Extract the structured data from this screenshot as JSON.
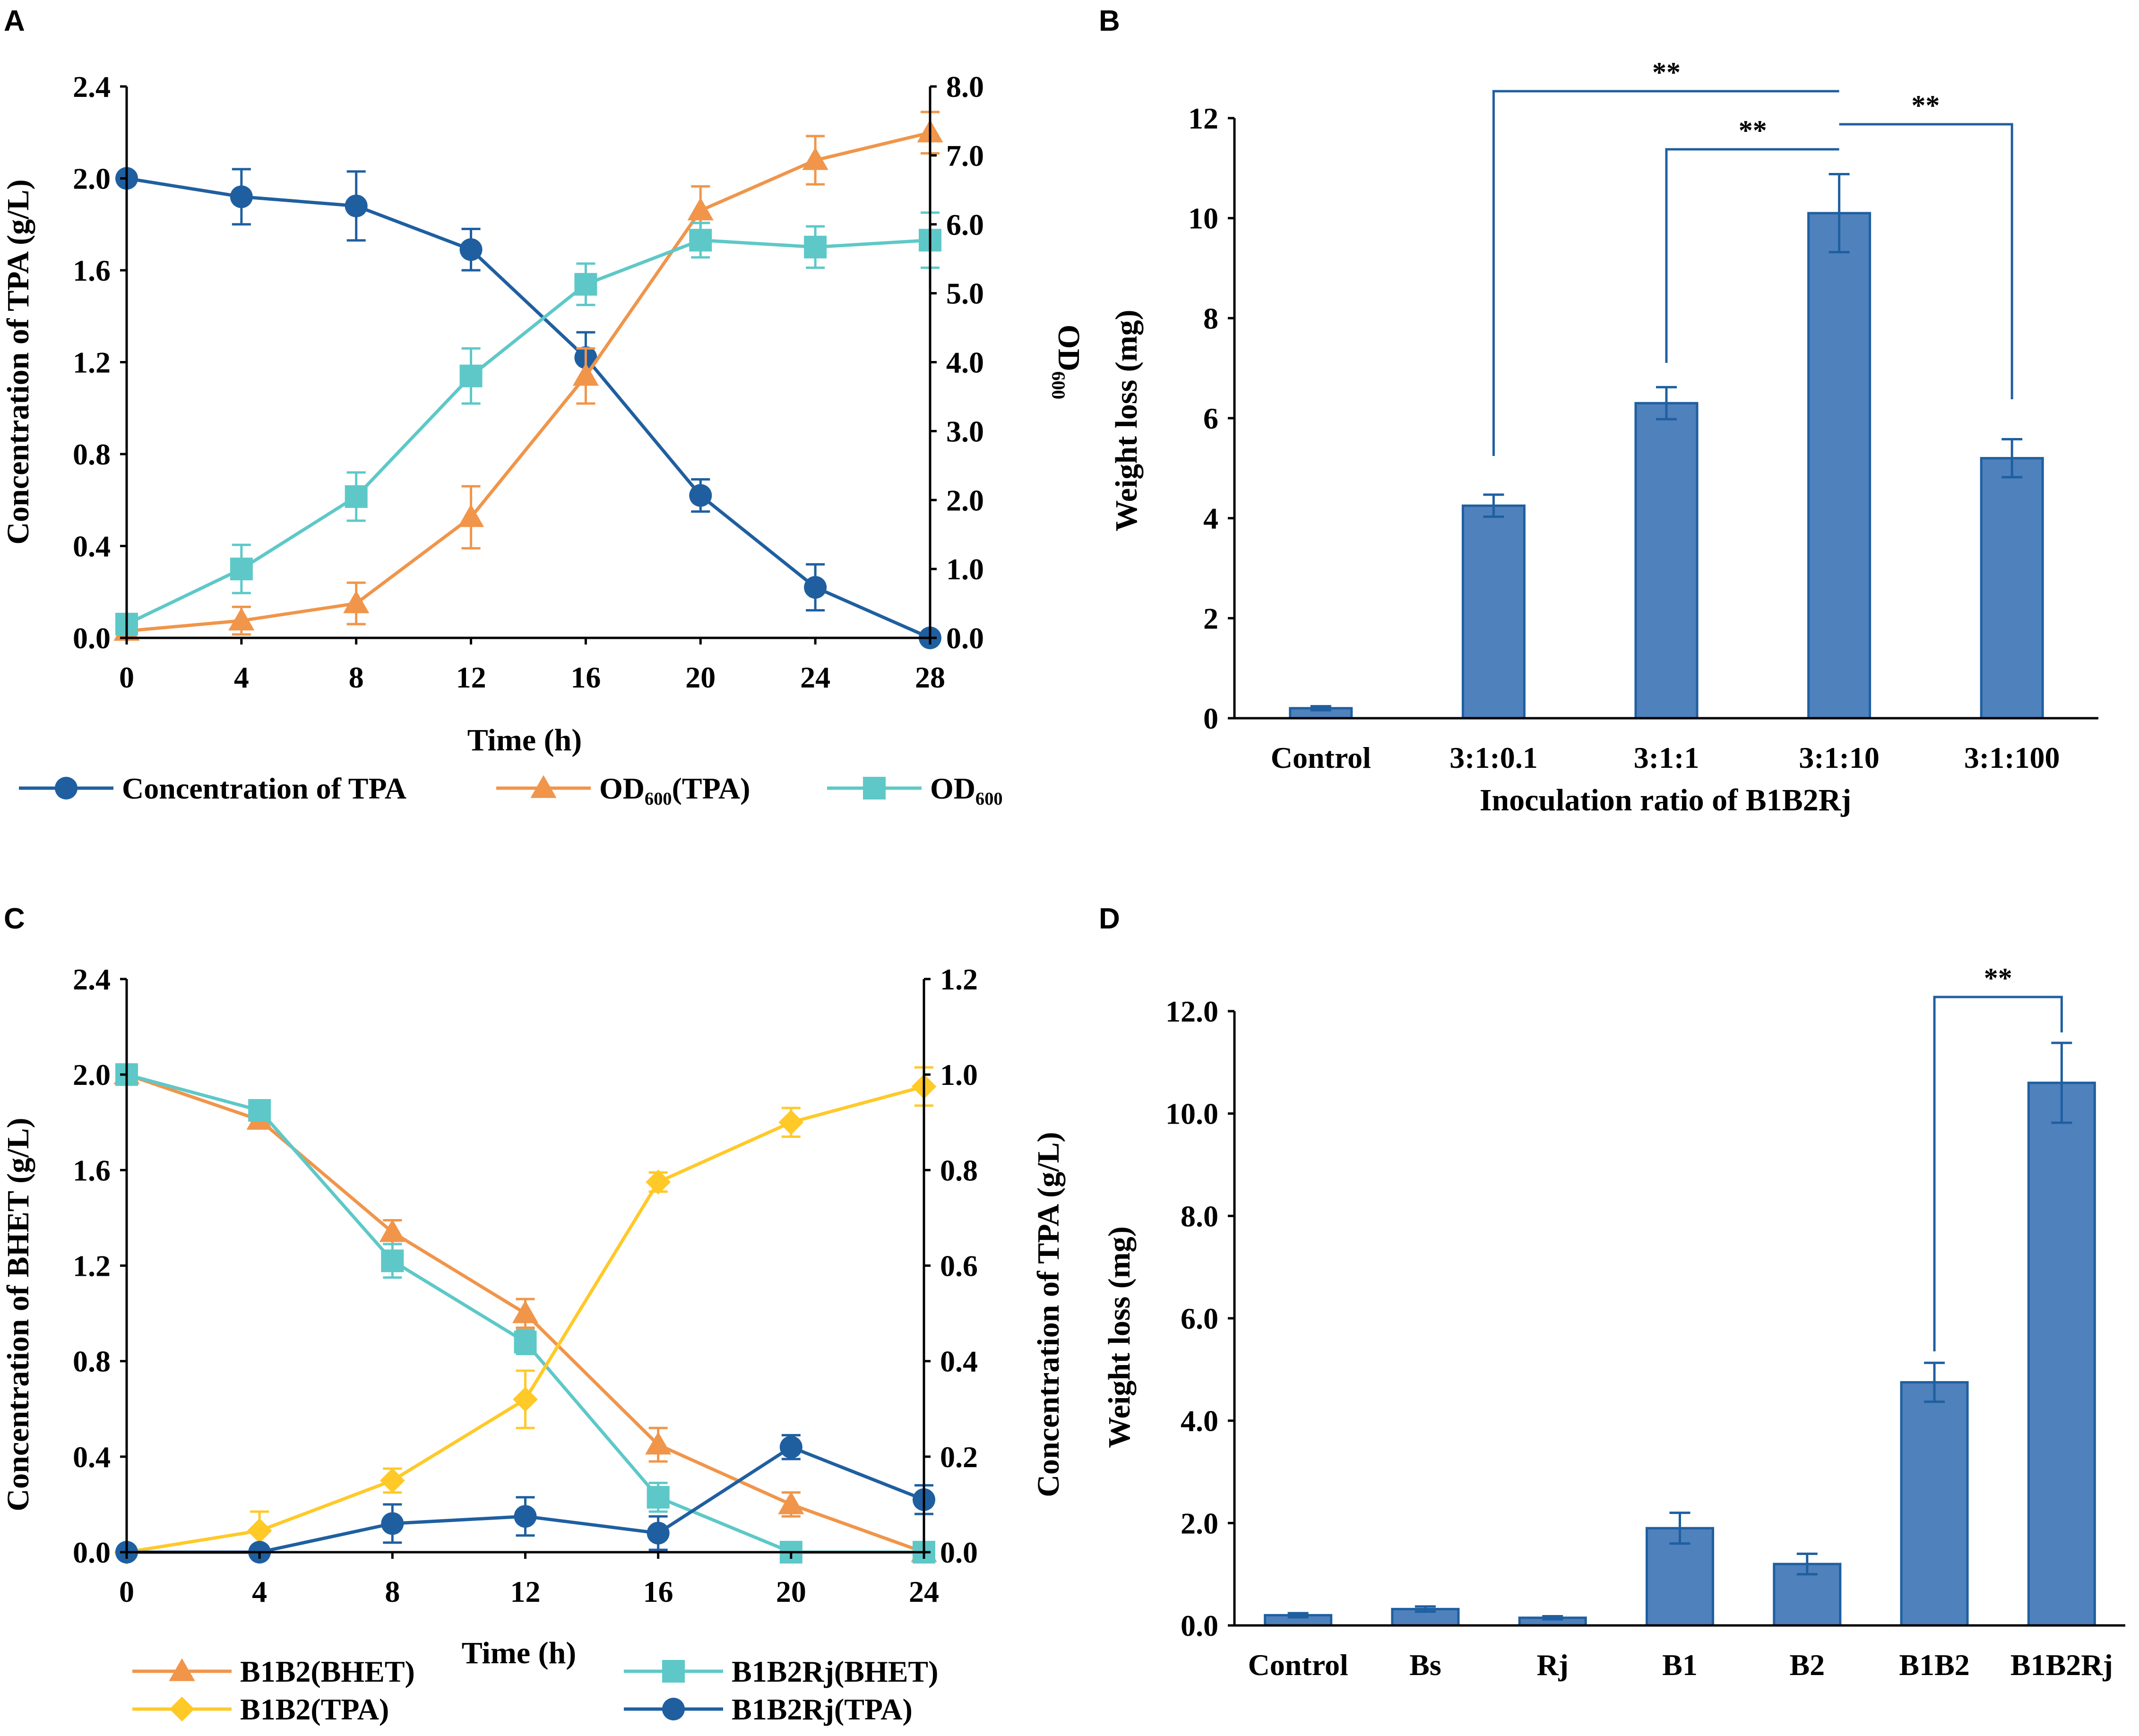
{
  "figure": {
    "panels": [
      "A",
      "B",
      "C",
      "D"
    ]
  },
  "colors": {
    "dark_blue": "#1f5fa0",
    "orange": "#f0954a",
    "teal": "#5ec8c8",
    "yellow": "#ffc928",
    "bar_fill": "#4f81bd",
    "bar_edge": "#1f5fa0",
    "axis": "#000000"
  },
  "chart_data": [
    {
      "panel": "A",
      "type": "line",
      "xlabel": "Time (h)",
      "ylabel": "Concentration of TPA (g/L)",
      "y2label": "OD₆₀₀",
      "x": [
        0,
        4,
        8,
        12,
        16,
        20,
        24,
        28
      ],
      "xticks": [
        "0",
        "4",
        "8",
        "12",
        "16",
        "20",
        "24",
        "28"
      ],
      "xlim": [
        0,
        28
      ],
      "ylim": [
        0,
        2.4
      ],
      "y2lim": [
        0,
        8
      ],
      "yticks": [
        "0.0",
        "0.4",
        "0.8",
        "1.2",
        "1.6",
        "2.0",
        "2.4"
      ],
      "y2ticks": [
        "0.0",
        "1.0",
        "2.0",
        "3.0",
        "4.0",
        "5.0",
        "6.0",
        "7.0",
        "8.0"
      ],
      "series": [
        {
          "name": "Concentration of TPA",
          "axis": "left",
          "marker": "circle",
          "color": "#1f5fa0",
          "values": [
            2.0,
            1.92,
            1.88,
            1.69,
            1.22,
            0.62,
            0.22,
            0.0
          ],
          "errors": [
            0,
            0.12,
            0.15,
            0.09,
            0.11,
            0.07,
            0.1,
            0
          ]
        },
        {
          "name": "OD₆₀₀(TPA)",
          "axis": "right",
          "marker": "triangle",
          "color": "#f0954a",
          "values": [
            0.1,
            0.25,
            0.5,
            1.75,
            3.8,
            6.2,
            6.93,
            7.33
          ],
          "errors": [
            0.05,
            0.2,
            0.3,
            0.45,
            0.4,
            0.35,
            0.35,
            0.3
          ]
        },
        {
          "name": "OD₆₀₀",
          "axis": "right",
          "marker": "square",
          "color": "#5ec8c8",
          "values": [
            0.2,
            1.0,
            2.05,
            3.8,
            5.13,
            5.77,
            5.67,
            5.77
          ],
          "errors": [
            0.05,
            0.35,
            0.35,
            0.4,
            0.3,
            0.25,
            0.3,
            0.4
          ]
        }
      ]
    },
    {
      "panel": "B",
      "type": "bar",
      "xlabel": "Inoculation ratio of B1B2Rj",
      "ylabel": "Weight loss (mg)",
      "categories": [
        "Control",
        "3:1:0.1",
        "3:1:1",
        "3:1:10",
        "3:1:100"
      ],
      "values": [
        0.2,
        4.25,
        6.3,
        10.1,
        5.2
      ],
      "errors": [
        0.04,
        0.22,
        0.32,
        0.78,
        0.38
      ],
      "ylim": [
        0,
        12
      ],
      "yticks": [
        "0",
        "2",
        "4",
        "6",
        "8",
        "10",
        "12"
      ],
      "significance": [
        {
          "from": 1,
          "to": 3,
          "label": "**"
        },
        {
          "from": 2,
          "to": 3,
          "label": "**"
        },
        {
          "from": 3,
          "to": 4,
          "label": "**"
        }
      ]
    },
    {
      "panel": "C",
      "type": "line",
      "xlabel": "Time (h)",
      "ylabel": "Concentration of BHET (g/L)",
      "y2label": "Concentration of TPA (g/L)",
      "x": [
        0,
        4,
        8,
        12,
        16,
        20,
        24
      ],
      "xticks": [
        "0",
        "4",
        "8",
        "12",
        "16",
        "20",
        "24"
      ],
      "xlim": [
        0,
        24
      ],
      "ylim": [
        0,
        2.4
      ],
      "y2lim": [
        0,
        1.2
      ],
      "yticks": [
        "0.0",
        "0.4",
        "0.8",
        "1.2",
        "1.6",
        "2.0",
        "2.4"
      ],
      "y2ticks": [
        "0.0",
        "0.2",
        "0.4",
        "0.6",
        "0.8",
        "1.0",
        "1.2"
      ],
      "series": [
        {
          "name": "B1B2(BHET)",
          "axis": "left",
          "marker": "triangle",
          "color": "#f0954a",
          "values": [
            2.0,
            1.81,
            1.34,
            1.0,
            0.45,
            0.2,
            0.0
          ],
          "errors": [
            0,
            0.03,
            0.05,
            0.06,
            0.07,
            0.05,
            0
          ]
        },
        {
          "name": "B1B2Rj(BHET)",
          "axis": "left",
          "marker": "square",
          "color": "#5ec8c8",
          "values": [
            2.0,
            1.85,
            1.22,
            0.88,
            0.23,
            0.0,
            0.0
          ],
          "errors": [
            0,
            0.03,
            0.07,
            0.05,
            0.06,
            0,
            0
          ]
        },
        {
          "name": "B1B2(TPA)",
          "axis": "right",
          "marker": "diamond",
          "color": "#ffc928",
          "values": [
            0.0,
            0.045,
            0.15,
            0.32,
            0.775,
            0.9,
            0.975
          ],
          "errors": [
            0,
            0.04,
            0.025,
            0.06,
            0.02,
            0.03,
            0.04
          ]
        },
        {
          "name": "B1B2Rj(TPA)",
          "axis": "right",
          "marker": "circle",
          "color": "#1f5fa0",
          "values": [
            0.0,
            0.0,
            0.06,
            0.075,
            0.04,
            0.22,
            0.11
          ],
          "errors": [
            0,
            0,
            0.04,
            0.04,
            0.035,
            0.025,
            0.03
          ]
        }
      ]
    },
    {
      "panel": "D",
      "type": "bar",
      "xlabel": "",
      "ylabel": "Weight loss (mg)",
      "categories": [
        "Control",
        "Bs",
        "Rj",
        "B1",
        "B2",
        "B1B2",
        "B1B2Rj"
      ],
      "values": [
        0.2,
        0.32,
        0.15,
        1.9,
        1.2,
        4.75,
        10.6
      ],
      "errors": [
        0.04,
        0.05,
        0.03,
        0.3,
        0.2,
        0.38,
        0.78
      ],
      "ylim": [
        0,
        12
      ],
      "yticks": [
        "0.0",
        "2.0",
        "4.0",
        "6.0",
        "8.0",
        "10.0",
        "12.0"
      ],
      "significance": [
        {
          "from": 5,
          "to": 6,
          "label": "**"
        }
      ]
    }
  ]
}
